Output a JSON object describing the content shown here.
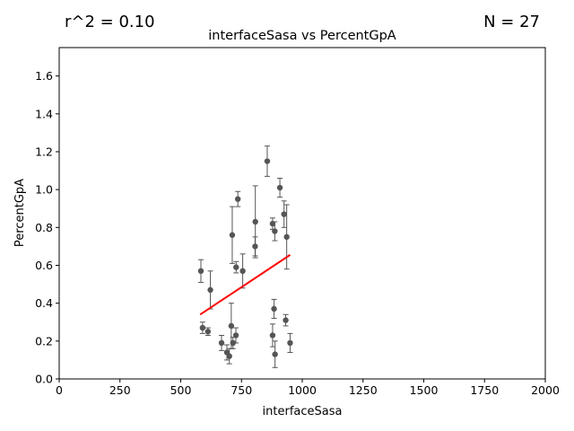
{
  "chart_data": {
    "type": "scatter",
    "title": "interfaceSasa vs PercentGpA",
    "xlabel": "interfaceSasa",
    "ylabel": "PercentGpA",
    "xlim": [
      0,
      2000
    ],
    "ylim": [
      0,
      1.75
    ],
    "xticks": [
      0,
      250,
      500,
      750,
      1000,
      1250,
      1500,
      1750,
      2000
    ],
    "yticks": [
      0.0,
      0.2,
      0.4,
      0.6,
      0.8,
      1.0,
      1.2,
      1.4,
      1.6
    ],
    "xtick_labels": [
      "0",
      "250",
      "500",
      "750",
      "1000",
      "1250",
      "1500",
      "1750",
      "2000"
    ],
    "ytick_labels": [
      "0.0",
      "0.2",
      "0.4",
      "0.6",
      "0.8",
      "1.0",
      "1.2",
      "1.4",
      "1.6"
    ],
    "annotations": {
      "r2": "r^2 = 0.10",
      "n": "N = 27"
    },
    "point_color": "#555555",
    "fit_color": "#ff0000",
    "points": [
      {
        "x": 583,
        "y": 0.57,
        "err": 0.06
      },
      {
        "x": 590,
        "y": 0.27,
        "err": 0.03
      },
      {
        "x": 612,
        "y": 0.25,
        "err": 0.02
      },
      {
        "x": 622,
        "y": 0.47,
        "err": 0.1
      },
      {
        "x": 668,
        "y": 0.19,
        "err": 0.04
      },
      {
        "x": 690,
        "y": 0.14,
        "err": 0.04
      },
      {
        "x": 700,
        "y": 0.12,
        "err": 0.04
      },
      {
        "x": 708,
        "y": 0.28,
        "err": 0.12
      },
      {
        "x": 712,
        "y": 0.76,
        "err": 0.15
      },
      {
        "x": 715,
        "y": 0.19,
        "err": 0.03
      },
      {
        "x": 727,
        "y": 0.23,
        "err": 0.04
      },
      {
        "x": 728,
        "y": 0.59,
        "err": 0.03
      },
      {
        "x": 735,
        "y": 0.95,
        "err": 0.04
      },
      {
        "x": 755,
        "y": 0.57,
        "err": 0.09
      },
      {
        "x": 806,
        "y": 0.7,
        "err": 0.05
      },
      {
        "x": 807,
        "y": 0.83,
        "err": 0.19
      },
      {
        "x": 856,
        "y": 1.15,
        "err": 0.08
      },
      {
        "x": 878,
        "y": 0.82,
        "err": 0.03
      },
      {
        "x": 878,
        "y": 0.23,
        "err": 0.06
      },
      {
        "x": 884,
        "y": 0.37,
        "err": 0.05
      },
      {
        "x": 887,
        "y": 0.78,
        "err": 0.05
      },
      {
        "x": 888,
        "y": 0.13,
        "err": 0.07
      },
      {
        "x": 908,
        "y": 1.01,
        "err": 0.05
      },
      {
        "x": 925,
        "y": 0.87,
        "err": 0.07
      },
      {
        "x": 932,
        "y": 0.31,
        "err": 0.03
      },
      {
        "x": 936,
        "y": 0.75,
        "err": 0.17
      },
      {
        "x": 950,
        "y": 0.19,
        "err": 0.05
      }
    ],
    "fit_line": {
      "x": [
        580,
        950
      ],
      "y": [
        0.34,
        0.655
      ]
    }
  }
}
